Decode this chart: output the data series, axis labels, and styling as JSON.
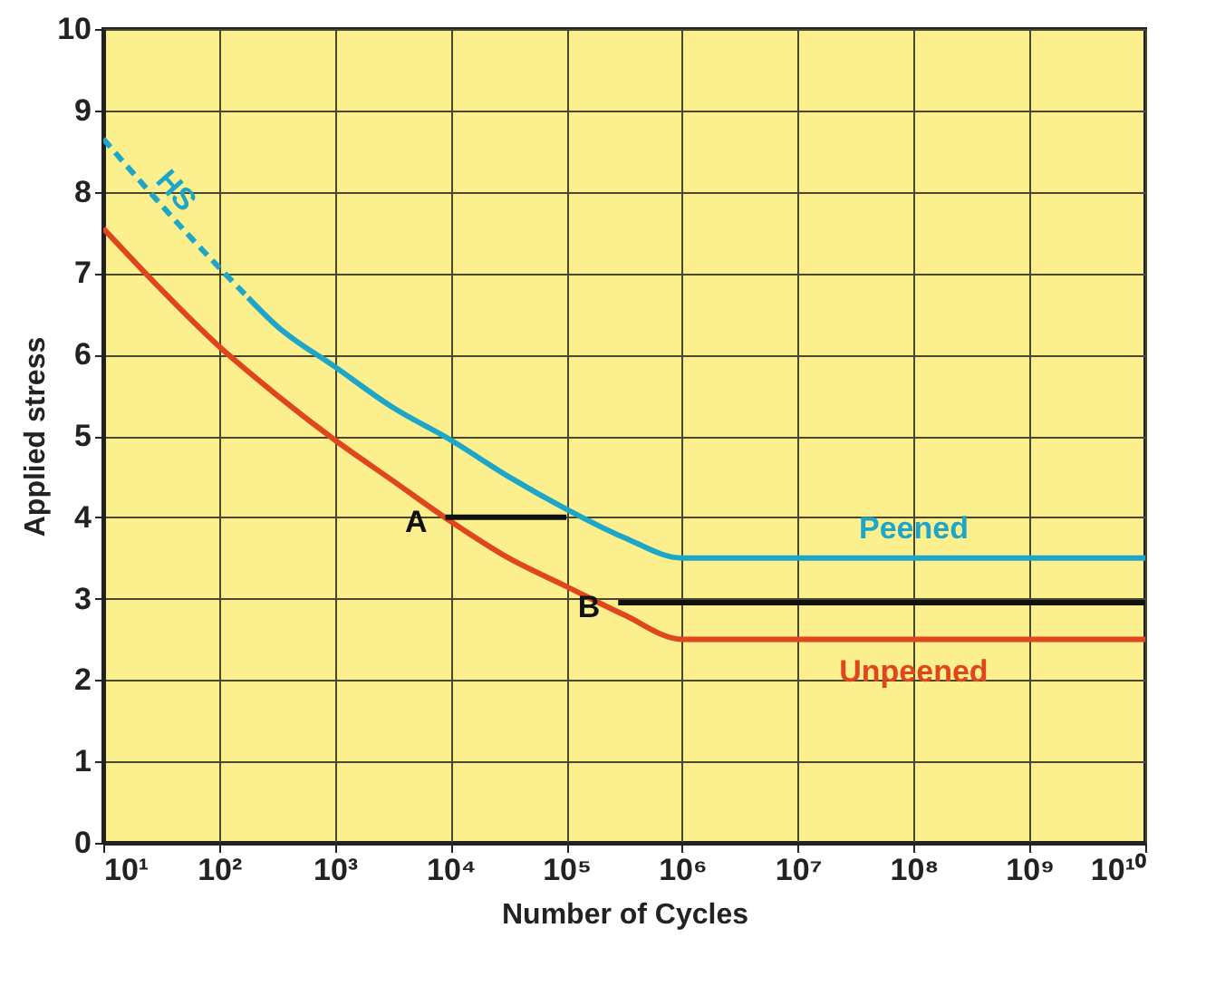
{
  "chart_data": {
    "type": "line",
    "xlabel": "Number of Cycles",
    "ylabel": "Applied stress",
    "log": "x",
    "xlim": [
      10,
      10000000000
    ],
    "ylim": [
      0,
      10
    ],
    "xticks": [
      {
        "value": 10,
        "label": "10¹"
      },
      {
        "value": 100,
        "label": "10²"
      },
      {
        "value": 1000,
        "label": "10³"
      },
      {
        "value": 10000,
        "label": "10⁴"
      },
      {
        "value": 100000,
        "label": "10⁵"
      },
      {
        "value": 1000000,
        "label": "10⁶"
      },
      {
        "value": 10000000,
        "label": "10⁷"
      },
      {
        "value": 100000000,
        "label": "10⁸"
      },
      {
        "value": 1000000000,
        "label": "10⁹"
      },
      {
        "value": 10000000000,
        "label": "10¹⁰"
      }
    ],
    "yticks": [
      0,
      1,
      2,
      3,
      4,
      5,
      6,
      7,
      8,
      9,
      10
    ],
    "grid": true,
    "marker": "none",
    "series": [
      {
        "name": "HS",
        "color": "#1ea6c8",
        "line_style": "dashed",
        "x": [
          10,
          56,
          178
        ],
        "values": [
          8.65,
          7.45,
          6.7
        ]
      },
      {
        "name": "Peened",
        "color": "#1ea6c8",
        "line_style": "solid",
        "x": [
          178,
          316,
          1000,
          3162,
          10000,
          31623,
          100000,
          316228,
          1000000,
          10000000000
        ],
        "values": [
          6.7,
          6.35,
          5.85,
          5.35,
          4.95,
          4.5,
          4.1,
          3.75,
          3.5,
          3.5
        ]
      },
      {
        "name": "Unpeened",
        "color": "#e0461e",
        "line_style": "solid",
        "x": [
          10,
          31.6,
          100,
          316,
          1000,
          3162,
          10000,
          31623,
          100000,
          316228,
          1000000,
          10000000000
        ],
        "values": [
          7.55,
          6.8,
          6.1,
          5.5,
          4.95,
          4.45,
          3.95,
          3.5,
          3.15,
          2.8,
          2.5,
          2.5
        ]
      },
      {
        "color": "#111111",
        "line_style": "solid",
        "x": [
          9000,
          100000
        ],
        "values": [
          4,
          4
        ]
      },
      {
        "color": "#111111",
        "line_style": "solid",
        "x": [
          280000,
          10000000000
        ],
        "values": [
          2.95,
          2.95
        ]
      }
    ],
    "annotations": [
      "A",
      "B"
    ]
  }
}
